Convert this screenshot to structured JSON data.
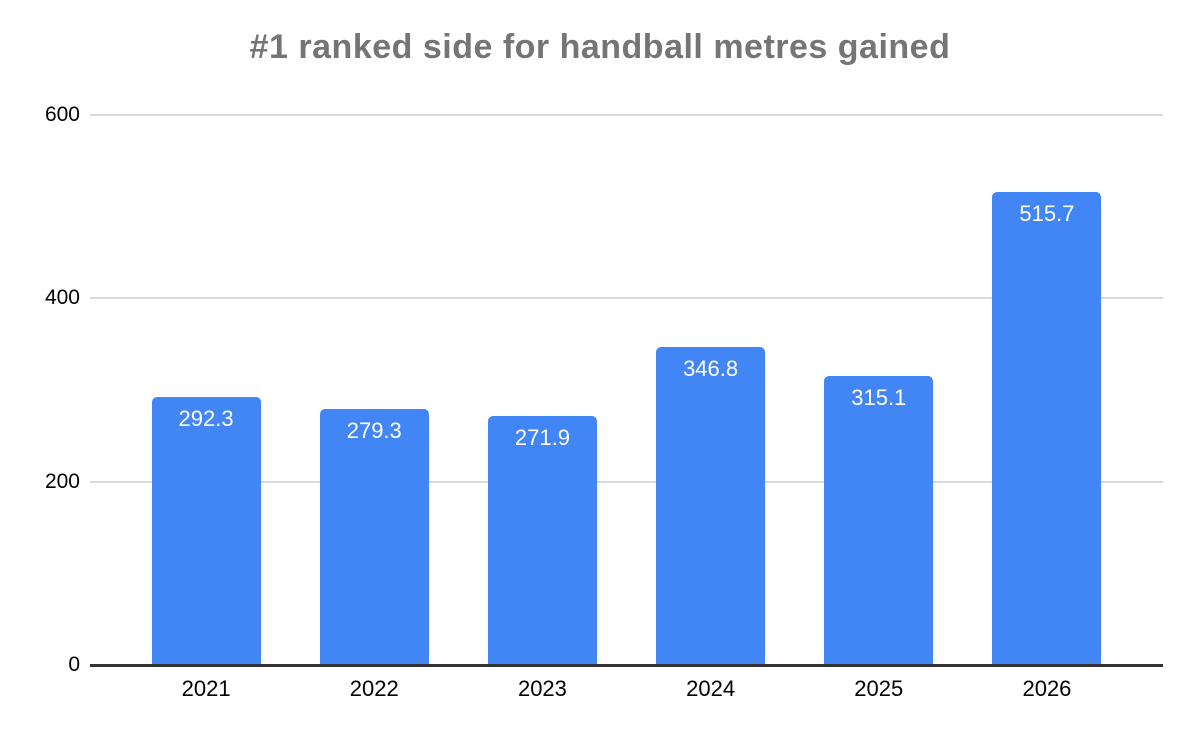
{
  "chart_data": {
    "type": "bar",
    "title": "#1 ranked side for handball metres gained",
    "categories": [
      "2021",
      "2022",
      "2023",
      "2024",
      "2025",
      "2026"
    ],
    "values": [
      292.3,
      279.3,
      271.9,
      346.8,
      315.1,
      515.7
    ],
    "value_labels": [
      "292.3",
      "279.3",
      "271.9",
      "346.8",
      "315.1",
      "515.7"
    ],
    "xlabel": "",
    "ylabel": "",
    "ylim": [
      0,
      600
    ],
    "yticks": [
      0,
      200,
      400,
      600
    ],
    "grid": true,
    "legend": "none",
    "colors": {
      "bar": "#4285f4",
      "bar_value_label": "#ffffff",
      "title": "#757575",
      "axis_text": "#000000",
      "gridline": "#d9d9d9",
      "baseline": "#333333",
      "background": "#ffffff"
    }
  }
}
